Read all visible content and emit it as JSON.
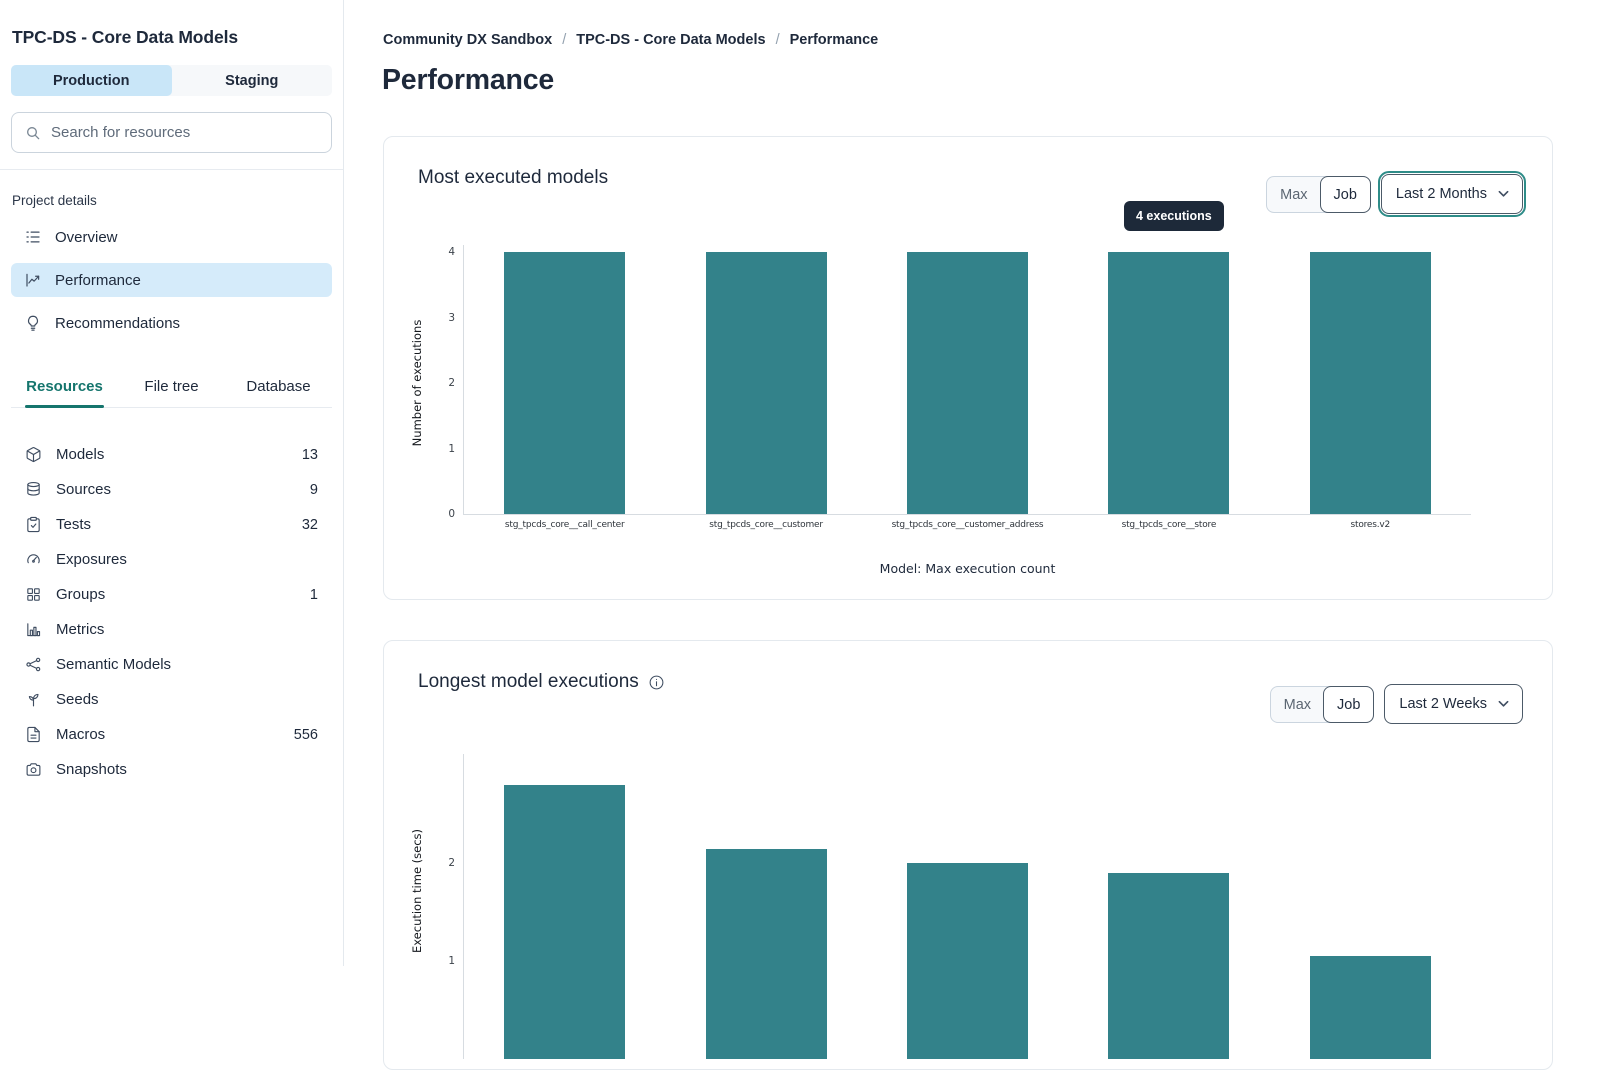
{
  "sidebar": {
    "title": "TPC-DS - Core Data Models",
    "env_tabs": [
      {
        "label": "Production",
        "selected": true
      },
      {
        "label": "Staging",
        "selected": false
      }
    ],
    "search_placeholder": "Search for resources",
    "search_icon": "search-icon",
    "project_details_label": "Project details",
    "nav": [
      {
        "label": "Overview",
        "icon": "list-icon",
        "selected": false
      },
      {
        "label": "Performance",
        "icon": "chart-line-icon",
        "selected": true
      },
      {
        "label": "Recommendations",
        "icon": "lightbulb-icon",
        "selected": false
      }
    ],
    "resource_tabs": [
      {
        "label": "Resources",
        "active": true
      },
      {
        "label": "File tree",
        "active": false
      },
      {
        "label": "Database",
        "active": false
      }
    ],
    "resources": [
      {
        "label": "Models",
        "count": "13",
        "icon": "cube-icon"
      },
      {
        "label": "Sources",
        "count": "9",
        "icon": "database-icon"
      },
      {
        "label": "Tests",
        "count": "32",
        "icon": "clipboard-check-icon"
      },
      {
        "label": "Exposures",
        "count": "",
        "icon": "gauge-icon"
      },
      {
        "label": "Groups",
        "count": "1",
        "icon": "grid-icon"
      },
      {
        "label": "Metrics",
        "count": "",
        "icon": "bar-chart-icon"
      },
      {
        "label": "Semantic Models",
        "count": "",
        "icon": "nodes-icon"
      },
      {
        "label": "Seeds",
        "count": "",
        "icon": "sprout-icon"
      },
      {
        "label": "Macros",
        "count": "556",
        "icon": "file-text-icon"
      },
      {
        "label": "Snapshots",
        "count": "",
        "icon": "camera-icon"
      }
    ]
  },
  "main": {
    "breadcrumb": [
      {
        "label": "Community DX Sandbox",
        "current": false
      },
      {
        "label": "TPC-DS - Core Data Models",
        "current": false
      },
      {
        "label": "Performance",
        "current": true
      }
    ],
    "breadcrumb_separator": "/",
    "page_title": "Performance",
    "cards": [
      {
        "title": "Most executed models",
        "toggle": {
          "options": [
            "Max",
            "Job"
          ],
          "active": "Job"
        },
        "dropdown": "Last 2 Months",
        "dropdown_focused": true,
        "tooltip": "4 executions"
      },
      {
        "title": "Longest model executions",
        "info_icon": "info-icon",
        "toggle": {
          "options": [
            "Max",
            "Job"
          ],
          "active": "Job"
        },
        "dropdown": "Last 2 Weeks",
        "dropdown_focused": false
      }
    ]
  },
  "colors": {
    "bar_teal": "#33828a",
    "selected_blue": "#c9e6f8",
    "active_tab_teal": "#15756d",
    "tooltip_bg": "#1d2939",
    "focus_ring_teal": "#2e8c88"
  },
  "chart_data": [
    {
      "type": "bar",
      "title": "Most executed models",
      "categories": [
        "stg_tpcds_core__call_center",
        "stg_tpcds_core__customer",
        "stg_tpcds_core__customer_address",
        "stg_tpcds_core__store",
        "stores.v2"
      ],
      "values": [
        4,
        4,
        4,
        4,
        4
      ],
      "xlabel": "Model: Max execution count",
      "ylabel": "Number of executions",
      "ylim": [
        0,
        4
      ],
      "yticks": [
        0,
        1,
        2,
        3,
        4
      ],
      "grid": false,
      "legend": false,
      "bar_color": "#33828a",
      "tooltip": {
        "text": "4 executions",
        "bar_index": 3
      }
    },
    {
      "type": "bar",
      "title": "Longest model executions",
      "values": [
        2.8,
        2.15,
        2.0,
        1.9,
        1.05
      ],
      "ylabel": "Execution time (secs)",
      "ylim": [
        0,
        2.9
      ],
      "yticks": [
        1,
        2
      ],
      "grid": false,
      "legend": false,
      "bar_color": "#33828a",
      "x_labels_cut_off": true
    }
  ]
}
